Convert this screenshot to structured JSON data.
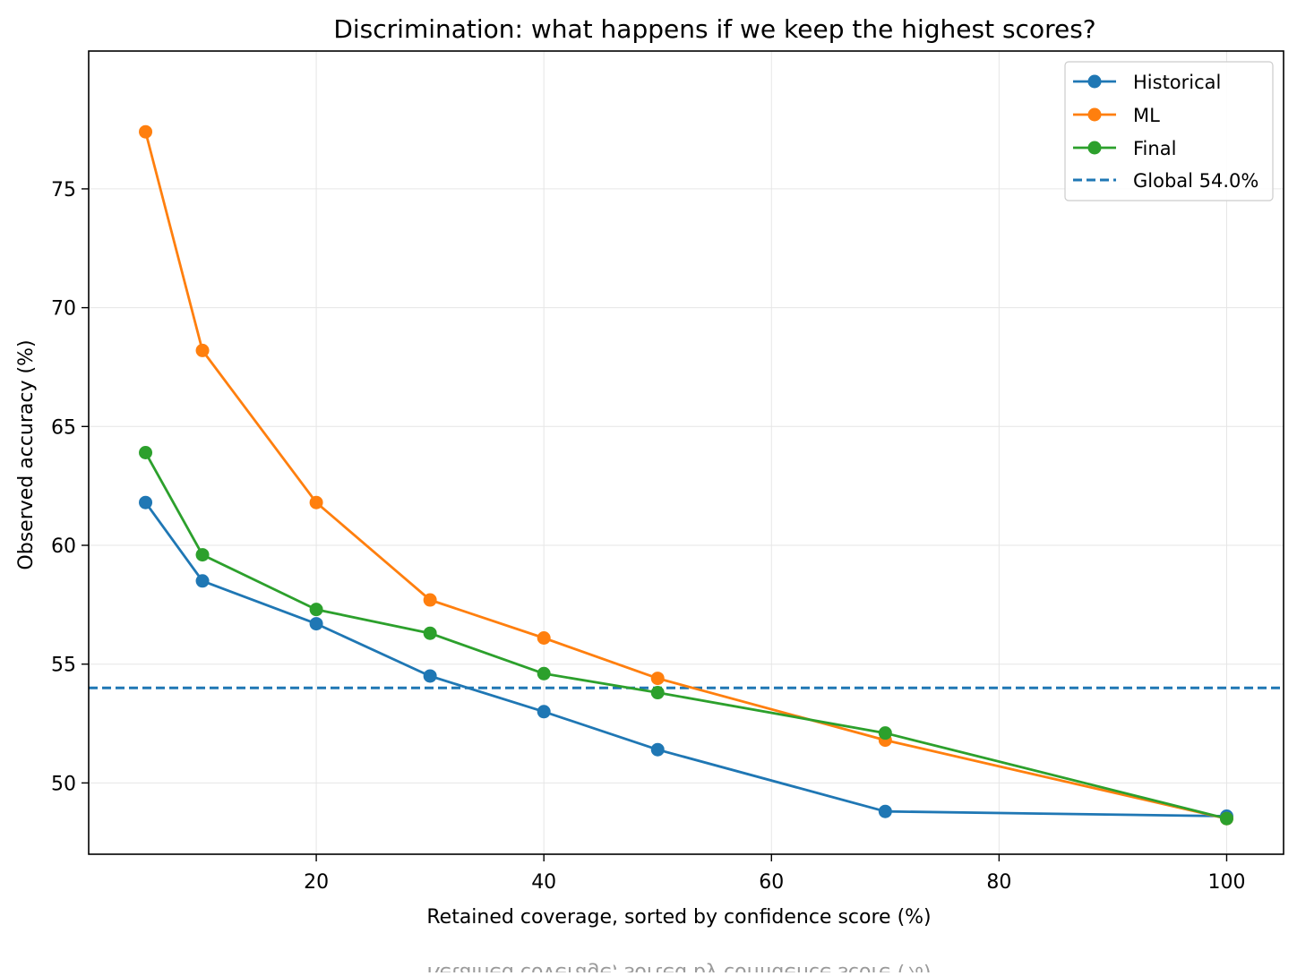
{
  "chart_data": {
    "type": "line",
    "title": "Discrimination: what happens if we keep the highest scores?",
    "xlabel": "Retained coverage, sorted by confidence score (%)",
    "ylabel": "Observed accuracy (%)",
    "xlim": [
      0,
      105
    ],
    "ylim": [
      47,
      80.8
    ],
    "xticks": [
      20,
      40,
      60,
      80,
      100
    ],
    "yticks": [
      50,
      55,
      60,
      65,
      70,
      75
    ],
    "xtick_labels": [
      "20",
      "40",
      "60",
      "80",
      "100"
    ],
    "ytick_labels": [
      "50",
      "55",
      "60",
      "65",
      "70",
      "75"
    ],
    "grid": true,
    "legend_position": "top-right",
    "series": [
      {
        "name": "Historical",
        "color": "#1f77b4",
        "marker": "circle",
        "x": [
          5,
          10,
          20,
          30,
          40,
          50,
          70,
          100
        ],
        "values": [
          61.8,
          58.5,
          56.7,
          54.5,
          53.0,
          51.4,
          48.8,
          48.6
        ]
      },
      {
        "name": "ML",
        "color": "#ff7f0e",
        "marker": "circle",
        "x": [
          5,
          10,
          20,
          30,
          40,
          50,
          70,
          100
        ],
        "values": [
          77.4,
          68.2,
          61.8,
          57.7,
          56.1,
          54.4,
          51.8,
          48.5
        ]
      },
      {
        "name": "Final",
        "color": "#2ca02c",
        "marker": "circle",
        "x": [
          5,
          10,
          20,
          30,
          40,
          50,
          70,
          100
        ],
        "values": [
          63.9,
          59.6,
          57.3,
          56.3,
          54.6,
          53.8,
          52.1,
          48.5
        ]
      }
    ],
    "reference_lines": [
      {
        "name": "Global 54.0%",
        "y": 54.0,
        "color": "#1f77b4",
        "style": "dashed"
      }
    ],
    "legend": [
      "Historical",
      "ML",
      "Final",
      "Global 54.0%"
    ],
    "footer_ghost_text": "Retained coverage, sorted by confidence score (%)"
  }
}
